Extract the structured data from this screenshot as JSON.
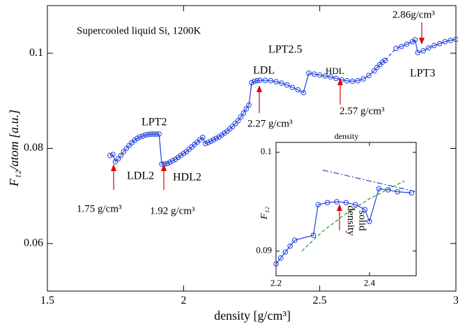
{
  "chart_data": [
    {
      "type": "line",
      "xlabel": "density [g/cm³]",
      "ylabel": "F₁₂/atom [a.u.]",
      "xlim": [
        1.5,
        3
      ],
      "ylim": [
        0.05,
        0.11
      ],
      "xticks": [
        1.5,
        2,
        2.5,
        3
      ],
      "yticks": [
        0.06,
        0.08,
        0.1
      ],
      "series": [
        {
          "color": "#1f3ee0",
          "markers": true,
          "dash": false,
          "x": [
            1.73,
            1.74,
            1.75,
            1.76,
            1.77,
            1.78,
            1.79,
            1.8,
            1.81,
            1.82,
            1.83,
            1.84,
            1.85,
            1.86,
            1.87,
            1.88,
            1.89,
            1.9,
            1.91,
            1.92,
            1.93,
            1.94,
            1.95,
            1.96,
            1.97,
            1.98,
            1.99,
            2.0,
            2.01,
            2.02,
            2.03,
            2.04,
            2.05,
            2.06,
            2.07,
            2.08,
            2.09,
            2.1,
            2.11,
            2.12,
            2.13,
            2.14,
            2.15,
            2.16,
            2.17,
            2.18,
            2.19,
            2.2,
            2.21,
            2.22,
            2.23,
            2.24,
            2.25,
            2.26,
            2.27,
            2.28,
            2.3,
            2.32,
            2.34,
            2.36,
            2.38,
            2.4,
            2.42,
            2.44,
            2.46,
            2.48,
            2.5,
            2.52,
            2.54,
            2.56,
            2.58,
            2.6,
            2.62,
            2.64,
            2.66,
            2.68,
            2.7,
            2.71,
            2.72,
            2.73,
            2.74
          ],
          "values": [
            0.0785,
            0.0787,
            0.0772,
            0.0778,
            0.0785,
            0.0793,
            0.08,
            0.0806,
            0.0812,
            0.0817,
            0.0821,
            0.0824,
            0.0826,
            0.0828,
            0.0829,
            0.083,
            0.083,
            0.083,
            0.083,
            0.0767,
            0.0767,
            0.0768,
            0.0771,
            0.0774,
            0.0777,
            0.0781,
            0.0785,
            0.0789,
            0.0793,
            0.0798,
            0.0803,
            0.0808,
            0.0813,
            0.0818,
            0.0823,
            0.081,
            0.0812,
            0.0815,
            0.0818,
            0.0821,
            0.0824,
            0.0828,
            0.0832,
            0.0836,
            0.0841,
            0.0846,
            0.0852,
            0.0858,
            0.0866,
            0.0874,
            0.0883,
            0.0891,
            0.0938,
            0.0941,
            0.0942,
            0.0943,
            0.0943,
            0.0942,
            0.094,
            0.0937,
            0.0933,
            0.0928,
            0.0923,
            0.0917,
            0.0958,
            0.0956,
            0.0954,
            0.0952,
            0.095,
            0.0947,
            0.0944,
            0.0942,
            0.0941,
            0.0942,
            0.0946,
            0.0953,
            0.0963,
            0.097,
            0.0976,
            0.0981,
            0.0985
          ]
        },
        {
          "color": "#1f3ee0",
          "markers": false,
          "dash": true,
          "x": [
            2.74,
            2.78
          ],
          "values": [
            0.0985,
            0.101
          ]
        },
        {
          "color": "#1f3ee0",
          "markers": true,
          "dash": false,
          "x": [
            2.78,
            2.8,
            2.82,
            2.84,
            2.85,
            2.86,
            2.88,
            2.9,
            2.92,
            2.94,
            2.96,
            2.98,
            3.0
          ],
          "values": [
            0.101,
            0.1014,
            0.1019,
            0.1024,
            0.1028,
            0.1001,
            0.1005,
            0.1011,
            0.1016,
            0.102,
            0.1024,
            0.1027,
            0.1029
          ]
        }
      ],
      "annotations": [
        {
          "text": "Supercooled liquid Si,  1200K"
        },
        {
          "text": "LPT2.5"
        },
        {
          "text": "LDL"
        },
        {
          "text": "HDL"
        },
        {
          "text": "2.27 g/cm³"
        },
        {
          "text": "2.57 g/cm³"
        },
        {
          "text": "2.86g/cm³"
        },
        {
          "text": "LPT3"
        },
        {
          "text": "LPT2"
        },
        {
          "text": "LDL2"
        },
        {
          "text": "HDL2"
        },
        {
          "text": "1.75 g/cm³"
        },
        {
          "text": "1.92 g/cm³"
        }
      ]
    },
    {
      "type": "line",
      "title": "density",
      "ylabel": "F₁₂",
      "xlim": [
        2.2,
        2.5
      ],
      "ylim": [
        0.0875,
        0.101
      ],
      "xticks": [
        2.2,
        2.4
      ],
      "yticks": [
        0.09,
        0.1
      ],
      "series": [
        {
          "color": "#1f3ee0",
          "markers": true,
          "dash": false,
          "x": [
            2.2,
            2.21,
            2.22,
            2.23,
            2.24,
            2.28,
            2.29,
            2.31,
            2.33,
            2.35,
            2.37,
            2.39,
            2.4,
            2.42,
            2.44,
            2.46,
            2.49
          ],
          "values": [
            0.0887,
            0.0893,
            0.0899,
            0.0905,
            0.0911,
            0.0916,
            0.0947,
            0.0949,
            0.095,
            0.0949,
            0.0947,
            0.0942,
            0.093,
            0.0963,
            0.0962,
            0.096,
            0.0959
          ]
        },
        {
          "color": "#1f3ee0",
          "markers": false,
          "dash": "dashdot",
          "x": [
            2.3,
            2.5
          ],
          "values": [
            0.0982,
            0.096
          ]
        },
        {
          "color": "#1f9a1f",
          "markers": false,
          "dash": true,
          "x": [
            2.255,
            2.3,
            2.35,
            2.4,
            2.45,
            2.475
          ],
          "values": [
            0.09,
            0.092,
            0.0938,
            0.0953,
            0.0965,
            0.0971
          ]
        }
      ],
      "annotations": [
        {
          "text_lines": [
            "solid",
            "density"
          ]
        }
      ]
    }
  ]
}
